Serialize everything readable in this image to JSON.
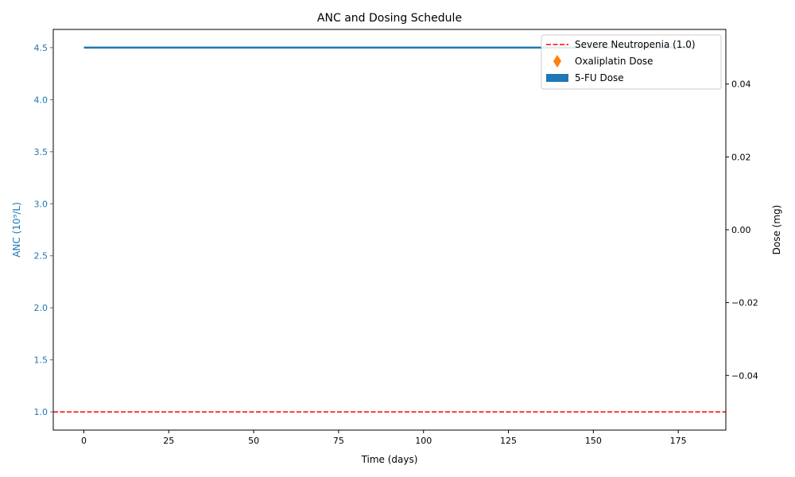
{
  "chart_data": {
    "type": "line",
    "title": "ANC and Dosing Schedule",
    "xlabel": "Time (days)",
    "ylabel_left": "ANC (10⁹/L)",
    "ylabel_right": "Dose (mg)",
    "xlim": [
      -9,
      189
    ],
    "ylim_left": [
      0.825,
      4.675
    ],
    "ylim_right": [
      -0.055,
      0.055
    ],
    "x_ticks": [
      0,
      25,
      50,
      75,
      100,
      125,
      150,
      175
    ],
    "x_tick_labels": [
      "0",
      "25",
      "50",
      "75",
      "100",
      "125",
      "150",
      "175"
    ],
    "y_left_ticks": [
      1.0,
      1.5,
      2.0,
      2.5,
      3.0,
      3.5,
      4.0,
      4.5
    ],
    "y_left_tick_labels": [
      "1.0",
      "1.5",
      "2.0",
      "2.5",
      "3.0",
      "3.5",
      "4.0",
      "4.5"
    ],
    "y_right_ticks": [
      -0.04,
      -0.02,
      0.0,
      0.02,
      0.04
    ],
    "y_right_tick_labels": [
      "−0.04",
      "−0.02",
      "0.00",
      "0.02",
      "0.04"
    ],
    "series": [
      {
        "name": "ANC",
        "x": [
          0,
          180
        ],
        "y": [
          4.5,
          4.5
        ],
        "color": "#1f77b4"
      }
    ],
    "reference_line": {
      "name": "Severe Neutropenia (1.0)",
      "y": 1.0,
      "color": "#ff0000",
      "style": "dashed"
    },
    "legend": {
      "placement": "top-right",
      "entries": [
        {
          "label": "Severe Neutropenia (1.0)",
          "kind": "dashed-line",
          "color": "#ff0000"
        },
        {
          "label": "Oxaliplatin Dose",
          "kind": "thin-diamond-marker",
          "color": "#ff7f0e"
        },
        {
          "label": "5-FU Dose",
          "kind": "bar-patch",
          "color": "#1f77b4"
        }
      ]
    },
    "grid": false,
    "left_axis_color": "#1f77b4"
  }
}
